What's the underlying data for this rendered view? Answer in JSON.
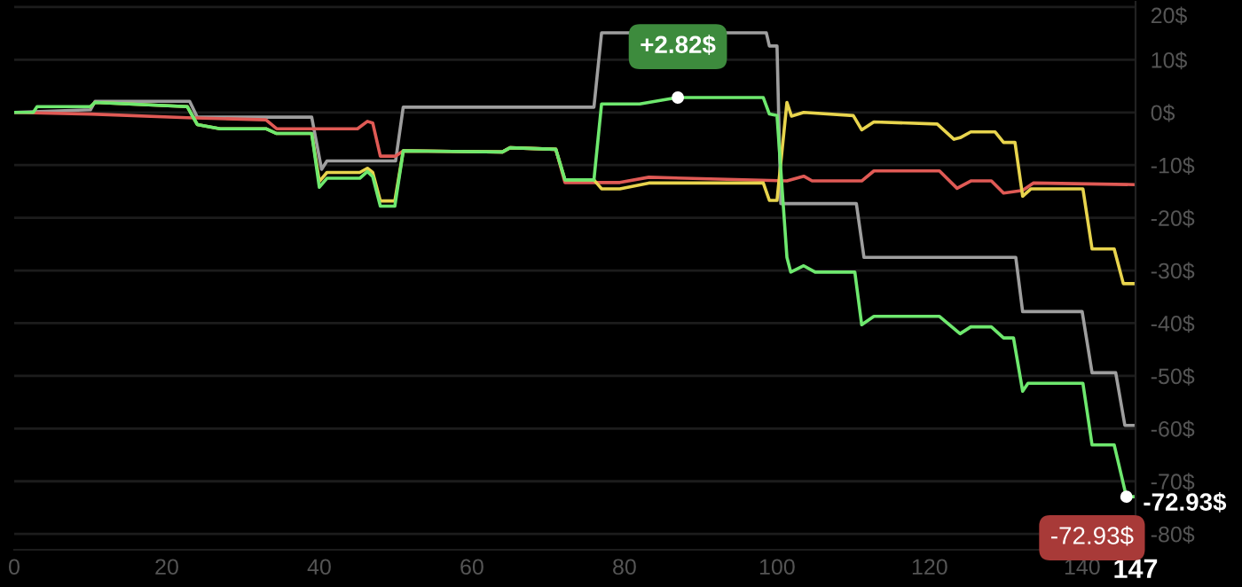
{
  "chart_data": {
    "type": "line",
    "xlim": [
      0,
      147
    ],
    "xticks": [
      0,
      20,
      40,
      60,
      80,
      100,
      120,
      140,
      {
        "value": 147,
        "label": "147"
      }
    ],
    "ylim": [
      -83,
      21
    ],
    "yticks": [
      {
        "value": -80,
        "label": "-80$"
      },
      {
        "value": -70,
        "label": "-70$"
      },
      {
        "value": -60,
        "label": "-60$"
      },
      {
        "value": -50,
        "label": "-50$"
      },
      {
        "value": -40,
        "label": "-40$"
      },
      {
        "value": -30,
        "label": "-30$"
      },
      {
        "value": -20,
        "label": "-20$"
      },
      {
        "value": -10,
        "label": "-10$"
      },
      {
        "value": 0,
        "label": "0$"
      },
      {
        "value": 10,
        "label": "10$"
      },
      {
        "value": 20,
        "label": "20$"
      }
    ],
    "grid": "y",
    "marker": "none",
    "line_style": "solid",
    "series": [
      {
        "color": "#9e9e9e",
        "x": [
          0,
          10,
          10.6,
          23,
          24,
          39,
          40.3,
          41,
          50,
          51,
          76,
          77,
          98.6,
          99,
          100,
          100.5,
          110.4,
          111.4,
          131.3,
          132.2,
          140,
          141.3,
          144.4,
          145.6,
          147
        ],
        "values": [
          0,
          0.5,
          2.1,
          2.1,
          -0.9,
          -0.9,
          -10.8,
          -9.2,
          -9.2,
          1.0,
          1.0,
          15.1,
          15.1,
          12.6,
          12.6,
          -17.3,
          -17.3,
          -27.5,
          -27.5,
          -37.8,
          -37.8,
          -49.4,
          -49.4,
          -59.4,
          -59.4
        ]
      },
      {
        "color": "#e05a55",
        "x": [
          0,
          10,
          22.7,
          33,
          34.4,
          45,
          46.3,
          47,
          48,
          50,
          51,
          64,
          65,
          71,
          72.2,
          79.4,
          83.2,
          101.3,
          103.5,
          104.6,
          111.1,
          112.7,
          121.3,
          123.6,
          125.4,
          128.1,
          129.7,
          132.2,
          133.6,
          147
        ],
        "values": [
          0,
          -0.3,
          -1.0,
          -1.4,
          -3.1,
          -3.1,
          -1.7,
          -2.0,
          -8.3,
          -8.3,
          -7.3,
          -7.5,
          -6.7,
          -7.0,
          -13.3,
          -13.3,
          -12.3,
          -13.0,
          -12.1,
          -13.0,
          -13.0,
          -11.1,
          -11.1,
          -14.4,
          -13.0,
          -13.0,
          -15.3,
          -14.8,
          -13.4,
          -13.7
        ]
      },
      {
        "color": "#e8d44d",
        "x": [
          10,
          10.6,
          22.7,
          24,
          27,
          33,
          34.4,
          39,
          40,
          41,
          45.3,
          46.3,
          47,
          48,
          49.9,
          51,
          64,
          65,
          71,
          72.2,
          76,
          77,
          79.4,
          83.2,
          98.2,
          99,
          100,
          101.3,
          101.9,
          103.5,
          110,
          111.1,
          112.7,
          121,
          123.2,
          124,
          125.4,
          128.6,
          129.7,
          131.2,
          132.2,
          133.3,
          140.1,
          141.3,
          144.2,
          145.4,
          147
        ],
        "values": [
          1.1,
          1.9,
          1.1,
          -2.3,
          -3.1,
          -3.1,
          -4.0,
          -4.0,
          -13.1,
          -11.4,
          -11.4,
          -10.6,
          -11.4,
          -16.8,
          -16.8,
          -7.3,
          -7.5,
          -6.7,
          -7.0,
          -12.8,
          -12.8,
          -14.5,
          -14.5,
          -13.4,
          -13.4,
          -16.7,
          -16.7,
          1.9,
          -0.7,
          0,
          -0.6,
          -3.3,
          -1.8,
          -2.2,
          -5.1,
          -4.8,
          -3.7,
          -3.7,
          -5.7,
          -5.7,
          -15.9,
          -14.5,
          -14.5,
          -25.9,
          -25.9,
          -32.5,
          -32.5
        ]
      },
      {
        "color": "#6ee86e",
        "x": [
          0,
          2.5,
          3,
          10,
          10.6,
          22.7,
          24,
          27,
          33,
          34.4,
          39,
          40,
          41,
          45.3,
          46.3,
          47,
          48,
          49.9,
          51,
          64,
          65,
          71,
          72.2,
          76,
          77,
          82,
          86.9,
          98.2,
          99,
          100,
          101.3,
          101.8,
          103.5,
          105,
          110.2,
          111.1,
          112.7,
          121.3,
          124,
          125.4,
          128.1,
          129.7,
          131,
          132.2,
          132.9,
          140.1,
          141.3,
          144.2,
          145.8,
          147
        ],
        "values": [
          0,
          0,
          1.1,
          1.1,
          1.9,
          1.1,
          -2.3,
          -3.1,
          -3.1,
          -4.0,
          -4.0,
          -14.2,
          -12.5,
          -12.5,
          -11.2,
          -12.2,
          -17.8,
          -17.8,
          -7.3,
          -7.5,
          -6.7,
          -7.0,
          -12.8,
          -12.8,
          1.6,
          1.6,
          2.82,
          2.82,
          -0.3,
          -0.6,
          -27.5,
          -30.3,
          -29.1,
          -30.3,
          -30.3,
          -40.3,
          -38.7,
          -38.7,
          -42.0,
          -40.7,
          -40.7,
          -42.8,
          -42.8,
          -52.9,
          -51.4,
          -51.4,
          -63.1,
          -63.1,
          -72.93,
          -72.93
        ]
      }
    ],
    "annotations": [
      {
        "text": "+2.82$",
        "x": 87,
        "y": 2.82
      },
      {
        "text": "-72.93$",
        "x": 145.8,
        "y": -72.93
      },
      {
        "text": "-72.93$",
        "x": 147,
        "y": -72.93
      }
    ]
  }
}
